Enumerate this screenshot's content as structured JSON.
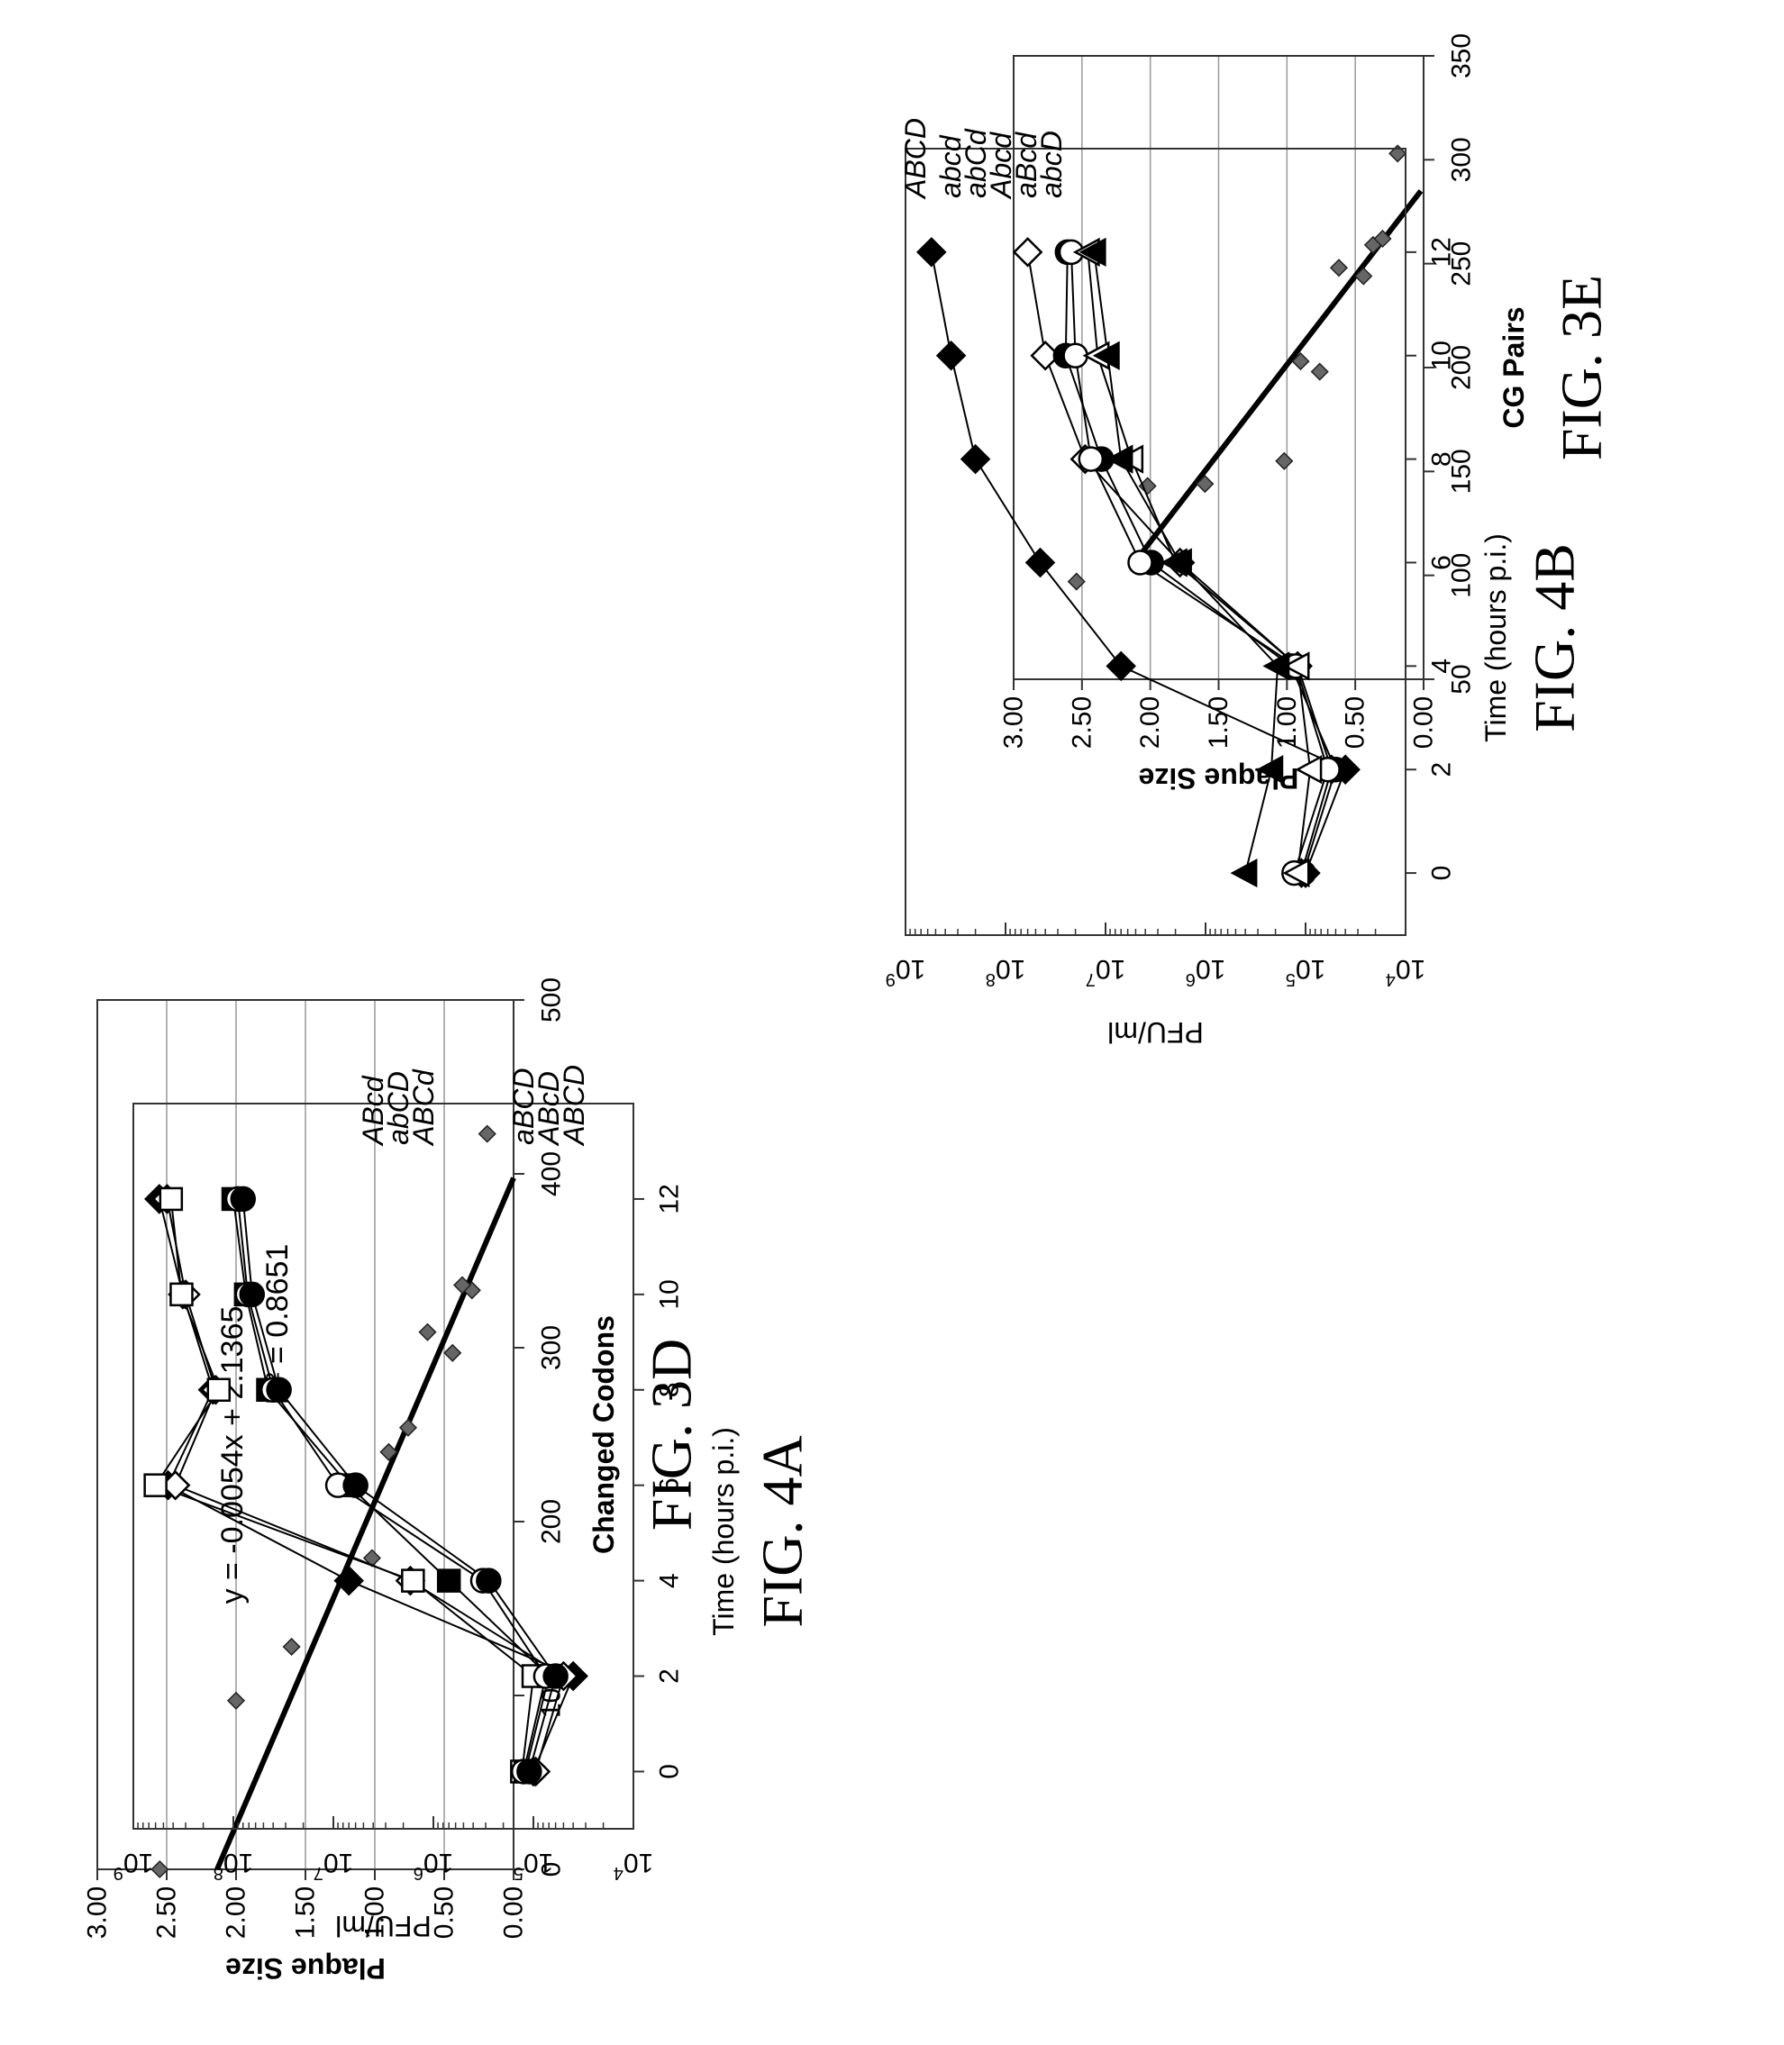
{
  "chart_data": [
    {
      "id": "fig3d",
      "type": "scatter",
      "figure_label": "FIG. 3D",
      "xlabel": "Changed Codons",
      "ylabel": "Plaque Size",
      "xlim": [
        0,
        500
      ],
      "ylim": [
        0.0,
        3.0
      ],
      "xticks": [
        "0",
        "100",
        "200",
        "300",
        "400",
        "500"
      ],
      "yticks": [
        "0.00",
        "0.50",
        "1.00",
        "1.50",
        "2.00",
        "2.50",
        "3.00"
      ],
      "grid": "horizontal",
      "points": [
        {
          "x": 0,
          "y": 2.55
        },
        {
          "x": 97,
          "y": 2.0
        },
        {
          "x": 128,
          "y": 1.6
        },
        {
          "x": 179,
          "y": 1.02
        },
        {
          "x": 240,
          "y": 0.9
        },
        {
          "x": 254,
          "y": 0.76
        },
        {
          "x": 297,
          "y": 0.44
        },
        {
          "x": 309,
          "y": 0.62
        },
        {
          "x": 333,
          "y": 0.3
        },
        {
          "x": 336,
          "y": 0.37
        },
        {
          "x": 423,
          "y": 0.19
        }
      ],
      "trendline": {
        "slope": -0.0054,
        "intercept": 2.1365
      },
      "equation": "y = -0.0054x + 2.1365",
      "r2_label": "R² = 0.8651"
    },
    {
      "id": "fig3e",
      "type": "scatter",
      "figure_label": "FIG. 3E",
      "xlabel": "CG Pairs",
      "ylabel": "Plaque Size",
      "xlim": [
        50,
        350
      ],
      "ylim": [
        0.0,
        3.0
      ],
      "xticks": [
        "50",
        "100",
        "150",
        "200",
        "250",
        "300",
        "350"
      ],
      "yticks": [
        "0.00",
        "0.50",
        "1.00",
        "1.50",
        "2.00",
        "2.50",
        "3.00"
      ],
      "grid": "horizontal",
      "points": [
        {
          "x": 97,
          "y": 2.54
        },
        {
          "x": 143,
          "y": 2.02
        },
        {
          "x": 144,
          "y": 1.6
        },
        {
          "x": 155,
          "y": 1.02
        },
        {
          "x": 203,
          "y": 0.9
        },
        {
          "x": 198,
          "y": 0.76
        },
        {
          "x": 248,
          "y": 0.62
        },
        {
          "x": 244,
          "y": 0.44
        },
        {
          "x": 259,
          "y": 0.37
        },
        {
          "x": 262,
          "y": 0.3
        },
        {
          "x": 303,
          "y": 0.19
        }
      ],
      "trendline": {
        "x": [
          105,
          285
        ],
        "y": [
          2.13,
          0.02
        ]
      }
    },
    {
      "id": "fig4a",
      "type": "line",
      "figure_label": "FIG. 4A",
      "xlabel": "Time (hours p.i.)",
      "ylabel": "PFU/ml",
      "scale": "log",
      "xlim": [
        -1.2,
        14
      ],
      "ylim": [
        4,
        9
      ],
      "xticks": [
        "0",
        "2",
        "4",
        "6",
        "8",
        "10",
        "12"
      ],
      "yticks": [
        {
          "base": "10",
          "exp": "4"
        },
        {
          "base": "10",
          "exp": "5"
        },
        {
          "base": "10",
          "exp": "6"
        },
        {
          "base": "10",
          "exp": "7"
        },
        {
          "base": "10",
          "exp": "8"
        },
        {
          "base": "10",
          "exp": "9"
        }
      ],
      "x": [
        0,
        2,
        4,
        6,
        8,
        10,
        12
      ],
      "series": [
        {
          "name": "ABCD",
          "marker": "diamond-filled",
          "values": [
            100000,
            40000,
            7000000,
            450000000,
            160000000,
            320000000,
            550000000
          ]
        },
        {
          "name": "ABcD",
          "marker": "diamond-open",
          "values": [
            95000,
            50000,
            1700000,
            380000000,
            150000000,
            300000000,
            460000000
          ]
        },
        {
          "name": "aBCD",
          "marker": "square-open",
          "values": [
            130000,
            100000,
            1600000,
            600000000,
            140000000,
            330000000,
            420000000
          ]
        },
        {
          "name": "ABCd",
          "marker": "square-filled",
          "values": [
            120000,
            70000,
            700000,
            7000000,
            45000000,
            75000000,
            100000000
          ]
        },
        {
          "name": "abCD",
          "marker": "circle-open",
          "values": [
            125000,
            75000,
            320000,
            9000000,
            40000000,
            72000000,
            90000000
          ]
        },
        {
          "name": "ABcd",
          "marker": "circle-filled",
          "values": [
            110000,
            60000,
            280000,
            6000000,
            35000000,
            65000000,
            80000000
          ]
        }
      ]
    },
    {
      "id": "fig4b",
      "type": "line",
      "figure_label": "FIG. 4B",
      "xlabel": "Time (hours p.i.)",
      "ylabel": "PFU/ml",
      "scale": "log",
      "xlim": [
        -1.2,
        14
      ],
      "ylim": [
        4,
        9
      ],
      "xticks": [
        "0",
        "2",
        "4",
        "6",
        "8",
        "10",
        "12"
      ],
      "yticks": [
        {
          "base": "10",
          "exp": "4"
        },
        {
          "base": "10",
          "exp": "5"
        },
        {
          "base": "10",
          "exp": "6"
        },
        {
          "base": "10",
          "exp": "7"
        },
        {
          "base": "10",
          "exp": "8"
        },
        {
          "base": "10",
          "exp": "9"
        }
      ],
      "x": [
        0,
        2,
        4,
        6,
        8,
        10,
        12
      ],
      "series": [
        {
          "name": "ABCD",
          "marker": "diamond-filled",
          "values": [
            100000,
            40000,
            7000000,
            45000000,
            200000000,
            350000000,
            550000000
          ]
        },
        {
          "name": "abcD",
          "marker": "diamond-open",
          "values": [
            110000,
            55000,
            120000,
            1800000,
            16000000,
            40000000,
            60000000
          ]
        },
        {
          "name": "aBcd",
          "marker": "circle-filled",
          "values": [
            105000,
            50000,
            140000,
            3500000,
            11000000,
            25000000,
            24000000
          ]
        },
        {
          "name": "Abcd",
          "marker": "circle-open",
          "values": [
            130000,
            60000,
            125000,
            4500000,
            14000000,
            20000000,
            22000000
          ]
        },
        {
          "name": "abCd",
          "marker": "triangle-open",
          "values": [
            120000,
            90000,
            120000,
            2000000,
            5500000,
            12000000,
            15000000
          ]
        },
        {
          "name": "abcd",
          "marker": "triangle-filled",
          "values": [
            400000,
            220000,
            190000,
            1800000,
            7000000,
            9500000,
            13000000
          ]
        }
      ]
    }
  ]
}
